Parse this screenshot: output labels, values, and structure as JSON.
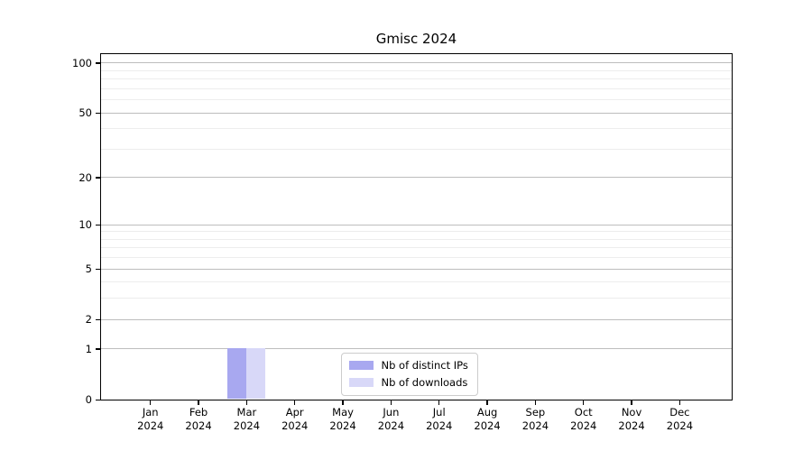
{
  "title": "Gmisc 2024",
  "chart_data": {
    "type": "bar",
    "title": "Gmisc 2024",
    "categories": [
      "Jan 2024",
      "Feb 2024",
      "Mar 2024",
      "Apr 2024",
      "May 2024",
      "Jun 2024",
      "Jul 2024",
      "Aug 2024",
      "Sep 2024",
      "Oct 2024",
      "Nov 2024",
      "Dec 2024"
    ],
    "series": [
      {
        "name": "Nb of distinct IPs",
        "color": "#a8a8f0",
        "values": [
          0,
          0,
          1,
          0,
          0,
          0,
          0,
          0,
          0,
          0,
          0,
          0
        ]
      },
      {
        "name": "Nb of downloads",
        "color": "#d8d8f8",
        "values": [
          0,
          0,
          1,
          0,
          0,
          0,
          0,
          0,
          0,
          0,
          0,
          0
        ]
      }
    ],
    "xlabel": "",
    "ylabel": "",
    "yscale": "log1p",
    "ylim": [
      0,
      113
    ],
    "yticks_major": [
      0,
      1,
      2,
      5,
      10,
      20,
      50,
      100
    ],
    "yticks_minor": [
      3,
      4,
      6,
      7,
      8,
      9,
      30,
      40,
      60,
      70,
      80,
      90
    ],
    "grid": "horizontal",
    "legend_position": "lower-center-inside"
  },
  "colors": {
    "distinct_ips": "#a8a8f0",
    "downloads": "#d8d8f8",
    "major_grid": "#c3c3c3",
    "minor_grid": "#ececec",
    "spine": "#000000"
  }
}
